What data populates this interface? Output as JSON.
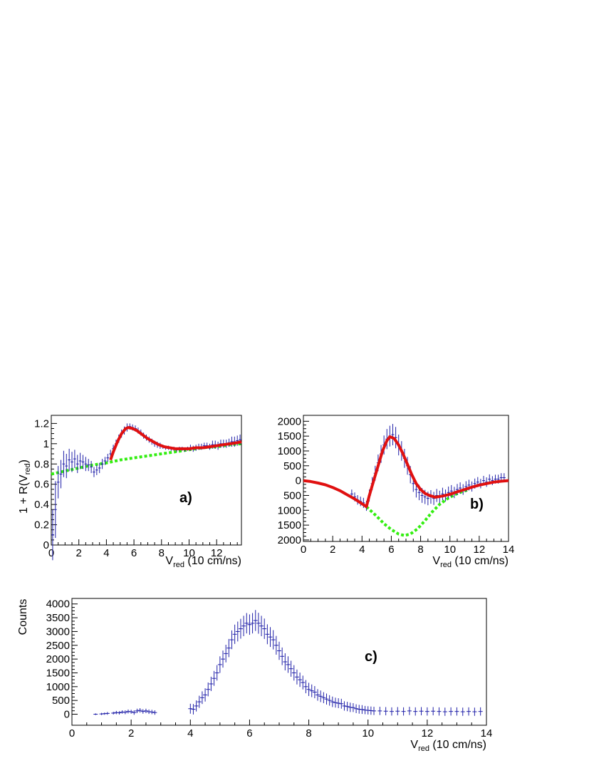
{
  "chart_data": [
    {
      "panel": "a)",
      "type": "scatter",
      "ylabel": "1 + R(V",
      "ylabel_sub": "red",
      "ylabel_close": ")",
      "xlabel": "V",
      "xlabel_sub": "red",
      "xlabel_rest": " (10 cm/ns)",
      "xlim": [
        0,
        13.8
      ],
      "ylim": [
        0,
        1.28
      ],
      "xticks": [
        0,
        2,
        4,
        6,
        8,
        10,
        12
      ],
      "yticks": [
        0,
        0.2,
        0.4,
        0.6,
        0.8,
        1,
        1.2
      ],
      "ytick_labels": [
        "0",
        "0.2",
        "0.4",
        "0.6",
        "0.8",
        "1",
        "1.2"
      ],
      "data_points": {
        "x": [
          0.1,
          0.3,
          0.5,
          0.7,
          0.9,
          1.1,
          1.3,
          1.5,
          1.7,
          1.9,
          2.1,
          2.3,
          2.5,
          2.7,
          2.9,
          3.1,
          3.3,
          3.5,
          3.7,
          3.9,
          4.1,
          4.3,
          4.5,
          4.7,
          4.9,
          5.1,
          5.3,
          5.5,
          5.7,
          5.9,
          6.1,
          6.3,
          6.5,
          6.7,
          6.9,
          7.1,
          7.3,
          7.5,
          7.7,
          7.9,
          8.1,
          8.3,
          8.5,
          8.7,
          8.9,
          9.1,
          9.3,
          9.5,
          9.7,
          9.9,
          10.1,
          10.3,
          10.5,
          10.7,
          10.9,
          11.1,
          11.3,
          11.5,
          11.7,
          11.9,
          12.1,
          12.3,
          12.5,
          12.7,
          12.9,
          13.1,
          13.3,
          13.5,
          13.7
        ],
        "y": [
          0.1,
          0.35,
          0.62,
          0.7,
          0.8,
          0.78,
          0.84,
          0.82,
          0.85,
          0.8,
          0.83,
          0.82,
          0.8,
          0.79,
          0.77,
          0.72,
          0.74,
          0.76,
          0.8,
          0.83,
          0.86,
          0.9,
          0.95,
          1.0,
          1.05,
          1.1,
          1.13,
          1.16,
          1.17,
          1.16,
          1.15,
          1.13,
          1.11,
          1.08,
          1.06,
          1.04,
          1.02,
          1.0,
          0.99,
          0.98,
          0.97,
          0.96,
          0.96,
          0.95,
          0.95,
          0.94,
          0.95,
          0.95,
          0.94,
          0.95,
          0.96,
          0.95,
          0.96,
          0.97,
          0.97,
          0.98,
          0.98,
          0.97,
          0.99,
          0.99,
          0.98,
          1.0,
          1.0,
          1.0,
          1.01,
          1.02,
          1.02,
          1.03,
          1.04
        ],
        "err": [
          0.25,
          0.28,
          0.16,
          0.14,
          0.13,
          0.12,
          0.11,
          0.1,
          0.09,
          0.09,
          0.08,
          0.07,
          0.07,
          0.06,
          0.06,
          0.05,
          0.05,
          0.05,
          0.05,
          0.04,
          0.04,
          0.04,
          0.04,
          0.04,
          0.04,
          0.04,
          0.04,
          0.04,
          0.03,
          0.03,
          0.03,
          0.03,
          0.03,
          0.03,
          0.03,
          0.03,
          0.03,
          0.03,
          0.03,
          0.03,
          0.02,
          0.02,
          0.02,
          0.02,
          0.02,
          0.02,
          0.02,
          0.02,
          0.02,
          0.02,
          0.03,
          0.03,
          0.03,
          0.03,
          0.03,
          0.03,
          0.03,
          0.03,
          0.04,
          0.04,
          0.04,
          0.04,
          0.04,
          0.04,
          0.04,
          0.05,
          0.05,
          0.05,
          0.05
        ],
        "color": "#1f1fa8"
      },
      "fit_curve": {
        "x": [
          4.3,
          4.5,
          4.8,
          5.1,
          5.4,
          5.6,
          5.9,
          6.2,
          6.6,
          7.0,
          7.4,
          7.8,
          8.2,
          8.6,
          9.0,
          9.5,
          10.0,
          10.5,
          11.0,
          11.5,
          12.0,
          12.5,
          13.0,
          13.5,
          13.8
        ],
        "y": [
          0.84,
          0.92,
          1.02,
          1.1,
          1.15,
          1.16,
          1.15,
          1.13,
          1.09,
          1.05,
          1.02,
          0.99,
          0.97,
          0.96,
          0.95,
          0.95,
          0.95,
          0.96,
          0.96,
          0.97,
          0.98,
          0.99,
          1.0,
          1.01,
          1.02
        ],
        "color": "#e01010"
      },
      "background_curve": {
        "x": [
          0,
          1,
          2,
          3,
          4,
          5,
          6,
          7,
          8,
          9,
          10,
          11,
          12,
          13,
          13.8
        ],
        "y": [
          0.7,
          0.73,
          0.76,
          0.79,
          0.81,
          0.84,
          0.86,
          0.88,
          0.9,
          0.92,
          0.94,
          0.96,
          0.97,
          0.99,
          1.0
        ],
        "color": "#33ee11"
      }
    },
    {
      "panel": "b)",
      "type": "scatter",
      "xlabel": "V",
      "xlabel_sub": "red",
      "xlabel_rest": " (10 cm/ns)",
      "xlim": [
        0,
        14
      ],
      "ylim": [
        -2050,
        2200
      ],
      "xticks": [
        0,
        2,
        4,
        6,
        8,
        10,
        12,
        14
      ],
      "yticks": [
        -2000,
        -1500,
        -1000,
        -500,
        0,
        500,
        1000,
        1500,
        2000
      ],
      "ytick_labels": [
        "2000",
        "1500",
        "1000",
        "500",
        "0",
        "500",
        "1000",
        "1500",
        "2000"
      ],
      "data_points": {
        "x": [
          3.3,
          3.5,
          3.7,
          3.9,
          4.1,
          4.3,
          4.5,
          4.7,
          4.9,
          5.1,
          5.3,
          5.5,
          5.7,
          5.9,
          6.1,
          6.3,
          6.5,
          6.7,
          6.9,
          7.1,
          7.3,
          7.5,
          7.7,
          7.9,
          8.1,
          8.3,
          8.5,
          8.7,
          8.9,
          9.1,
          9.3,
          9.5,
          9.7,
          9.9,
          10.1,
          10.3,
          10.5,
          10.7,
          10.9,
          11.1,
          11.3,
          11.5,
          11.7,
          11.9,
          12.1,
          12.3,
          12.5,
          12.7,
          12.9,
          13.1,
          13.3,
          13.5,
          13.7
        ],
        "y": [
          -450,
          -550,
          -650,
          -700,
          -750,
          -850,
          -500,
          -100,
          250,
          600,
          900,
          1200,
          1400,
          1500,
          1550,
          1450,
          1200,
          1000,
          750,
          500,
          200,
          -100,
          -300,
          -400,
          -500,
          -550,
          -600,
          -550,
          -600,
          -500,
          -550,
          -450,
          -500,
          -400,
          -350,
          -400,
          -300,
          -250,
          -300,
          -200,
          -150,
          -200,
          -100,
          -50,
          -100,
          0,
          -50,
          50,
          0,
          50,
          50,
          100,
          100
        ],
        "err": [
          150,
          150,
          160,
          160,
          170,
          170,
          200,
          220,
          250,
          280,
          300,
          320,
          340,
          350,
          360,
          360,
          350,
          330,
          320,
          300,
          290,
          280,
          270,
          260,
          250,
          240,
          230,
          230,
          220,
          220,
          210,
          210,
          200,
          200,
          200,
          190,
          190,
          190,
          180,
          180,
          180,
          170,
          170,
          170,
          160,
          160,
          160,
          160,
          150,
          150,
          150,
          150,
          150
        ],
        "color": "#1f1fa8"
      },
      "fit_curve": {
        "x": [
          0,
          0.5,
          1,
          1.5,
          2,
          2.5,
          3,
          3.5,
          4,
          4.3,
          4.5,
          4.8,
          5.1,
          5.4,
          5.7,
          5.9,
          6.2,
          6.5,
          6.8,
          7.1,
          7.4,
          7.7,
          8.0,
          8.3,
          8.6,
          9.0,
          9.5,
          10,
          10.5,
          11,
          11.5,
          12,
          12.5,
          13,
          13.5,
          14
        ],
        "y": [
          0,
          -30,
          -80,
          -140,
          -230,
          -340,
          -480,
          -620,
          -780,
          -880,
          -500,
          0,
          500,
          1000,
          1350,
          1480,
          1420,
          1200,
          900,
          550,
          200,
          -100,
          -300,
          -430,
          -500,
          -560,
          -520,
          -460,
          -380,
          -300,
          -220,
          -150,
          -100,
          -50,
          -20,
          0
        ],
        "color": "#e01010"
      },
      "background_curve": {
        "x": [
          4.3,
          5,
          5.5,
          6,
          6.5,
          6.9,
          7.3,
          7.8,
          8.3,
          8.8,
          9.3,
          9.8,
          10.3,
          10.8,
          11.3
        ],
        "y": [
          -880,
          -1200,
          -1450,
          -1650,
          -1800,
          -1850,
          -1800,
          -1620,
          -1350,
          -1050,
          -800,
          -620,
          -480,
          -380,
          -300
        ],
        "color": "#33ee11"
      }
    },
    {
      "panel": "c)",
      "type": "scatter",
      "ylabel": "Counts",
      "xlabel": "V",
      "xlabel_sub": "red",
      "xlabel_rest": " (10 cm/ns)",
      "xlim": [
        0,
        14
      ],
      "ylim": [
        -400,
        4200
      ],
      "xticks": [
        0,
        2,
        4,
        6,
        8,
        10,
        12,
        14
      ],
      "yticks": [
        0,
        500,
        1000,
        1500,
        2000,
        2500,
        3000,
        3500,
        4000
      ],
      "ytick_labels": [
        "0",
        "500",
        "1000",
        "1500",
        "2000",
        "2500",
        "3000",
        "3500",
        "4000"
      ],
      "data_points": {
        "x": [
          0.8,
          1.0,
          1.1,
          1.2,
          1.4,
          1.5,
          1.6,
          1.7,
          1.8,
          1.9,
          2.0,
          2.1,
          2.2,
          2.3,
          2.4,
          2.5,
          2.6,
          2.7,
          2.8,
          4.0,
          4.1,
          4.2,
          4.3,
          4.4,
          4.5,
          4.6,
          4.7,
          4.8,
          4.9,
          5.0,
          5.1,
          5.2,
          5.3,
          5.4,
          5.5,
          5.6,
          5.7,
          5.8,
          5.9,
          6.0,
          6.1,
          6.2,
          6.3,
          6.4,
          6.5,
          6.6,
          6.7,
          6.8,
          6.9,
          7.0,
          7.1,
          7.2,
          7.3,
          7.4,
          7.5,
          7.6,
          7.7,
          7.8,
          7.9,
          8.0,
          8.1,
          8.2,
          8.3,
          8.4,
          8.5,
          8.6,
          8.7,
          8.8,
          8.9,
          9.0,
          9.1,
          9.2,
          9.3,
          9.4,
          9.5,
          9.6,
          9.7,
          9.8,
          9.9,
          10.0,
          10.1,
          10.2,
          10.4,
          10.6,
          10.8,
          11.0,
          11.2,
          11.4,
          11.6,
          11.8,
          12.0,
          12.2,
          12.4,
          12.6,
          12.8,
          13.0,
          13.2,
          13.4,
          13.6,
          13.8
        ],
        "y": [
          0,
          10,
          20,
          30,
          40,
          60,
          50,
          80,
          70,
          100,
          90,
          60,
          120,
          140,
          100,
          120,
          90,
          80,
          60,
          200,
          180,
          300,
          450,
          600,
          700,
          900,
          1100,
          1300,
          1500,
          1800,
          2000,
          2200,
          2400,
          2700,
          2900,
          3000,
          3100,
          3200,
          3300,
          3250,
          3300,
          3400,
          3300,
          3200,
          3100,
          2900,
          2800,
          2700,
          2500,
          2300,
          2100,
          1900,
          1800,
          1650,
          1500,
          1350,
          1250,
          1150,
          1000,
          900,
          850,
          800,
          700,
          650,
          600,
          550,
          500,
          450,
          420,
          400,
          380,
          300,
          280,
          250,
          240,
          200,
          180,
          170,
          150,
          140,
          130,
          120,
          120,
          110,
          100,
          110,
          100,
          120,
          100,
          110,
          100,
          110,
          100,
          90,
          100,
          100,
          90,
          100,
          90,
          100
        ],
        "err": [
          30,
          40,
          40,
          50,
          50,
          60,
          60,
          60,
          70,
          70,
          70,
          80,
          80,
          80,
          80,
          80,
          80,
          80,
          80,
          180,
          190,
          200,
          220,
          230,
          240,
          250,
          260,
          270,
          280,
          300,
          310,
          320,
          330,
          340,
          350,
          360,
          360,
          370,
          370,
          370,
          370,
          380,
          380,
          370,
          370,
          360,
          360,
          350,
          340,
          330,
          320,
          310,
          300,
          290,
          280,
          270,
          260,
          250,
          240,
          240,
          230,
          220,
          210,
          210,
          200,
          200,
          190,
          190,
          180,
          180,
          180,
          170,
          170,
          170,
          160,
          160,
          160,
          160,
          150,
          150,
          150,
          150,
          150,
          150,
          150,
          150,
          150,
          150,
          150,
          150,
          150,
          150,
          150,
          150,
          150,
          150,
          150,
          150,
          150,
          150
        ],
        "color": "#1f1fa8"
      }
    }
  ]
}
